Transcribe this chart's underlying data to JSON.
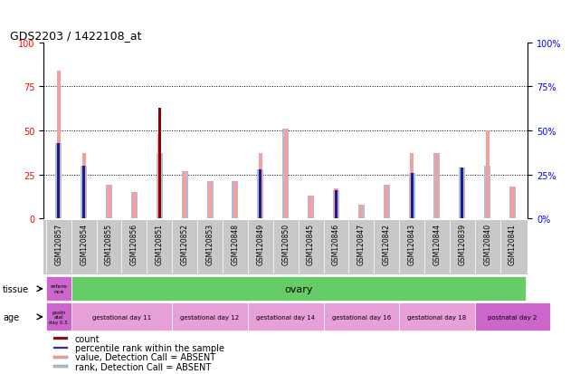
{
  "title": "GDS2203 / 1422108_at",
  "samples": [
    "GSM120857",
    "GSM120854",
    "GSM120855",
    "GSM120856",
    "GSM120851",
    "GSM120852",
    "GSM120853",
    "GSM120848",
    "GSM120849",
    "GSM120850",
    "GSM120845",
    "GSM120846",
    "GSM120847",
    "GSM120842",
    "GSM120843",
    "GSM120844",
    "GSM120839",
    "GSM120840",
    "GSM120841"
  ],
  "count_values": [
    0,
    0,
    0,
    0,
    63,
    0,
    0,
    0,
    0,
    0,
    0,
    0,
    0,
    0,
    0,
    0,
    0,
    0,
    0
  ],
  "rank_values": [
    43,
    30,
    0,
    0,
    37,
    0,
    0,
    0,
    28,
    0,
    0,
    16,
    0,
    0,
    26,
    0,
    29,
    0,
    0
  ],
  "absent_value": [
    84,
    37,
    19,
    15,
    48,
    27,
    21,
    21,
    37,
    51,
    13,
    17,
    8,
    19,
    37,
    37,
    23,
    50,
    18
  ],
  "absent_rank": [
    43,
    30,
    19,
    15,
    37,
    27,
    21,
    21,
    28,
    51,
    13,
    16,
    8,
    19,
    26,
    37,
    29,
    30,
    18
  ],
  "ylim": [
    0,
    100
  ],
  "yticks": [
    0,
    25,
    50,
    75,
    100
  ],
  "count_color": "#8B0000",
  "rank_color": "#1C1C8C",
  "absent_val_color": "#F4A0A0",
  "absent_rank_color": "#AABFDB",
  "tissue_row": {
    "reference_label": "refere\nnce",
    "reference_color": "#CC66CC",
    "ovary_label": "ovary",
    "ovary_color": "#66CC66",
    "n_reference": 1,
    "n_ovary": 18
  },
  "age_row": {
    "postnatal_label": "postn\natal\nday 0.5",
    "postnatal_color": "#CC66CC",
    "groups": [
      {
        "label": "gestational day 11",
        "n": 4,
        "color": "#E8A0D8"
      },
      {
        "label": "gestational day 12",
        "n": 3,
        "color": "#E8A0D8"
      },
      {
        "label": "gestational day 14",
        "n": 3,
        "color": "#E8A0D8"
      },
      {
        "label": "gestational day 16",
        "n": 3,
        "color": "#E8A0D8"
      },
      {
        "label": "gestational day 18",
        "n": 3,
        "color": "#E8A0D8"
      },
      {
        "label": "postnatal day 2",
        "n": 3,
        "color": "#CC66CC"
      }
    ]
  },
  "legend_items": [
    {
      "color": "#8B0000",
      "label": "count"
    },
    {
      "color": "#1C1C8C",
      "label": "percentile rank within the sample"
    },
    {
      "color": "#F4A0A0",
      "label": "value, Detection Call = ABSENT"
    },
    {
      "color": "#AABFDB",
      "label": "rank, Detection Call = ABSENT"
    }
  ]
}
